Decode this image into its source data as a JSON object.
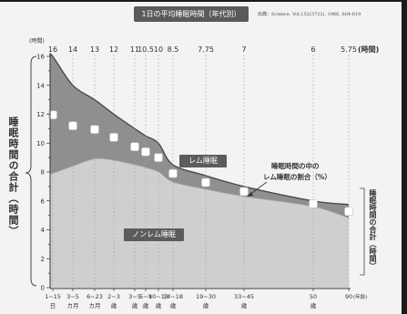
{
  "labels": {
    "ylabel_right": "睡眠時間の合計（時間）",
    "rem_ratio_line1": "睡眠時間の中の",
    "rem_ratio_line2": "レム睡眠の割合（%）"
  },
  "colors": {
    "rem_area": "#8f8f8f",
    "nrem_area": "#cfcfcf",
    "curve": "#4a4a4a",
    "guide": "#9a9a9a",
    "axis": "#333333",
    "marker": "#ffffff"
  },
  "chart_data": {
    "type": "area",
    "title": "1日の平均睡眠時間（年代別）",
    "source": "出典：Science, Vol.152(3722), 1966, 604-619",
    "ylabel": "睡眠時間の合計（時間）",
    "y_unit": "(時間)",
    "x_unit": "(年齢)",
    "ylim": [
      0,
      16
    ],
    "yticks": [
      0,
      2,
      4,
      6,
      8,
      10,
      12,
      14,
      16
    ],
    "categories": [
      [
        "1~15",
        "日"
      ],
      [
        "3~5",
        "カ月"
      ],
      [
        "6~23",
        "カ月"
      ],
      [
        "2~3",
        "歳"
      ],
      [
        "3~5",
        "歳"
      ],
      [
        "5~9",
        "歳"
      ],
      [
        "10~13",
        "歳"
      ],
      [
        "14~18",
        "歳"
      ],
      [
        "19~30",
        "歳"
      ],
      [
        "33~45",
        "歳"
      ],
      [
        "50",
        "歳"
      ],
      [
        "90",
        ""
      ]
    ],
    "total_hours": [
      16,
      14,
      13,
      12,
      11,
      10.5,
      10,
      8.5,
      7.75,
      7,
      6,
      5.75
    ],
    "series": [
      {
        "name": "ノンレム睡眠",
        "values": [
          7.9,
          8.4,
          8.9,
          8.8,
          8.5,
          8.3,
          8.0,
          7.3,
          6.8,
          6.3,
          5.6,
          4.8
        ]
      },
      {
        "name": "レム睡眠",
        "values": [
          8.1,
          5.6,
          4.1,
          3.2,
          2.5,
          2.2,
          2.0,
          1.2,
          0.95,
          0.7,
          0.4,
          0.95
        ]
      }
    ],
    "grid": false,
    "legend": "none"
  }
}
